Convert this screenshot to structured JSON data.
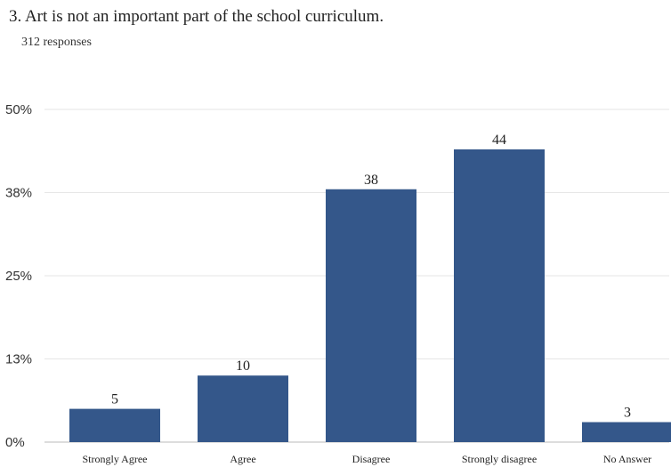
{
  "question": {
    "title": "3. Art is not an important part of the school curriculum.",
    "responses": "312 responses"
  },
  "chart_data": {
    "type": "bar",
    "title": "3. Art is not an important part of the school curriculum.",
    "subtitle": "312 responses",
    "categories": [
      "Strongly Agree",
      "Agree",
      "Disagree",
      "Strongly disagree",
      "No Answer"
    ],
    "values": [
      5,
      10,
      38,
      44,
      3
    ],
    "data_labels": [
      "5",
      "10",
      "38",
      "44",
      "3"
    ],
    "y_ticks": [
      0,
      12.5,
      25,
      37.5,
      50
    ],
    "y_tick_labels": [
      "0%",
      "13%",
      "25%",
      "38%",
      "50%"
    ],
    "ylim": [
      0,
      50
    ],
    "xlabel": "",
    "ylabel": "",
    "grid": true,
    "legend": "none",
    "bar_color": "#34578a",
    "grid_color": "#e6e6e6"
  }
}
